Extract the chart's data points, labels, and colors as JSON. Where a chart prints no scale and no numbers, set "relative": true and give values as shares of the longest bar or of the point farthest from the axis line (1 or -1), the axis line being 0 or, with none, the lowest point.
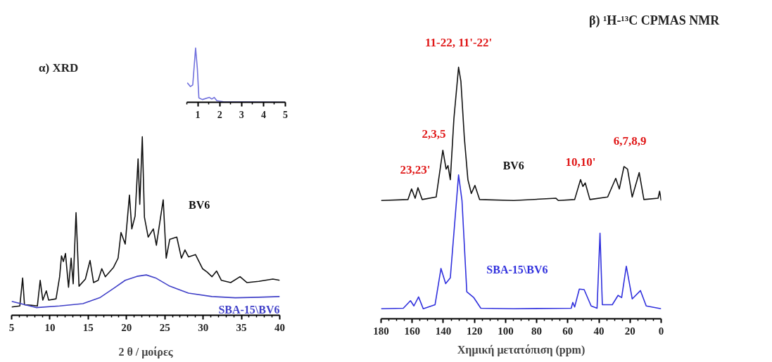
{
  "chart_data": [
    {
      "type": "line",
      "title": "α) XRD",
      "xlabel": "2 θ / μοίρες",
      "relative": true,
      "tick_labels": "x",
      "xlim": [
        5,
        40
      ],
      "xticks": [
        5,
        {
          "value": 6,
          "label": null
        },
        {
          "value": 7,
          "label": null
        },
        {
          "value": 8,
          "label": null
        },
        {
          "value": 9,
          "label": null
        },
        10,
        {
          "value": 11,
          "label": null
        },
        {
          "value": 12,
          "label": null
        },
        {
          "value": 13,
          "label": null
        },
        {
          "value": 14,
          "label": null
        },
        15,
        {
          "value": 16,
          "label": null
        },
        {
          "value": 17,
          "label": null
        },
        {
          "value": 18,
          "label": null
        },
        {
          "value": 19,
          "label": null
        },
        20,
        {
          "value": 21,
          "label": null
        },
        {
          "value": 22,
          "label": null
        },
        {
          "value": 23,
          "label": null
        },
        {
          "value": 24,
          "label": null
        },
        25,
        {
          "value": 26,
          "label": null
        },
        {
          "value": 27,
          "label": null
        },
        {
          "value": 28,
          "label": null
        },
        {
          "value": 29,
          "label": null
        },
        30,
        {
          "value": 31,
          "label": null
        },
        {
          "value": 32,
          "label": null
        },
        {
          "value": 33,
          "label": null
        },
        {
          "value": 34,
          "label": null
        },
        35,
        {
          "value": 36,
          "label": null
        },
        {
          "value": 37,
          "label": null
        },
        {
          "value": 38,
          "label": null
        },
        {
          "value": 39,
          "label": null
        },
        40
      ],
      "series": [
        {
          "name": "BV6",
          "color": "#111111",
          "x": [
            5,
            6.07,
            6.44,
            6.68,
            7.6,
            8.36,
            8.73,
            9.07,
            9.53,
            9.83,
            10.8,
            11.27,
            11.51,
            11.76,
            12.03,
            12.43,
            12.77,
            13.04,
            13.41,
            13.8,
            14.63,
            15.24,
            15.7,
            16.3,
            16.77,
            17.23,
            18.3,
            18.9,
            19.28,
            19.83,
            20.38,
            20.69,
            21.12,
            21.51,
            21.73,
            22.06,
            22.34,
            22.83,
            23.5,
            23.9,
            24.42,
            24.79,
            25.18,
            25.64,
            26.56,
            27.17,
            27.63,
            28.09,
            29.0,
            29.92,
            30.53,
            31.15,
            31.76,
            32.37,
            33.6,
            34.82,
            35.73,
            37.26,
            39.1,
            40
          ],
          "values": [
            0.046,
            0.052,
            0.209,
            0.059,
            0.056,
            0.052,
            0.196,
            0.085,
            0.137,
            0.085,
            0.092,
            0.216,
            0.333,
            0.301,
            0.346,
            0.157,
            0.32,
            0.176,
            0.575,
            0.163,
            0.203,
            0.307,
            0.183,
            0.196,
            0.261,
            0.216,
            0.268,
            0.32,
            0.464,
            0.399,
            0.673,
            0.484,
            0.556,
            0.876,
            0.621,
            1.0,
            0.549,
            0.438,
            0.484,
            0.392,
            0.542,
            0.647,
            0.32,
            0.425,
            0.438,
            0.32,
            0.366,
            0.327,
            0.34,
            0.261,
            0.242,
            0.216,
            0.248,
            0.196,
            0.183,
            0.216,
            0.183,
            0.19,
            0.203,
            0.196
          ]
        },
        {
          "name": "SBA-15\\BV6",
          "color": "#4040c8",
          "x": [
            5,
            6.2,
            8.2,
            11.27,
            14.3,
            16.5,
            18.3,
            19.83,
            21.36,
            22.58,
            23.8,
            25.64,
            28.09,
            31.15,
            34.2,
            37.26,
            40
          ],
          "values": [
            0.078,
            0.065,
            0.043,
            0.052,
            0.065,
            0.098,
            0.15,
            0.196,
            0.218,
            0.226,
            0.209,
            0.163,
            0.124,
            0.105,
            0.098,
            0.101,
            0.105
          ]
        }
      ]
    },
    {
      "type": "line",
      "relative": true,
      "tick_labels": "x",
      "xlim": [
        0.5,
        5
      ],
      "xticks": [
        {
          "value": 0.5,
          "label": null
        },
        1,
        {
          "value": 1.5,
          "label": null
        },
        2,
        {
          "value": 2.5,
          "label": null
        },
        3,
        {
          "value": 3.5,
          "label": null
        },
        4,
        {
          "value": 4.5,
          "label": null
        },
        5
      ],
      "series": [
        {
          "color": "#7070dd",
          "x": [
            0.52,
            0.66,
            0.77,
            0.9,
            0.98,
            1.05,
            1.21,
            1.53,
            1.64,
            1.75,
            1.87,
            2.17,
            3.24,
            5
          ],
          "values": [
            0.36,
            0.29,
            0.32,
            1.0,
            0.62,
            0.08,
            0.05,
            0.09,
            0.06,
            0.09,
            0.03,
            0.01,
            0.005,
            0
          ]
        }
      ]
    },
    {
      "type": "line",
      "title": "β) ¹H-¹³C CPMAS NMR",
      "xlabel": "Χημική μετατόπιση (ppm)",
      "relative": true,
      "tick_labels": "x",
      "xlim": [
        180,
        0
      ],
      "xticks": [
        180,
        {
          "value": 175,
          "label": null
        },
        {
          "value": 170,
          "label": null
        },
        {
          "value": 165,
          "label": null
        },
        160,
        {
          "value": 155,
          "label": null
        },
        {
          "value": 150,
          "label": null
        },
        {
          "value": 145,
          "label": null
        },
        140,
        {
          "value": 135,
          "label": null
        },
        {
          "value": 130,
          "label": null
        },
        {
          "value": 125,
          "label": null
        },
        120,
        {
          "value": 115,
          "label": null
        },
        {
          "value": 110,
          "label": null
        },
        {
          "value": 105,
          "label": null
        },
        100,
        {
          "value": 95,
          "label": null
        },
        {
          "value": 90,
          "label": null
        },
        {
          "value": 85,
          "label": null
        },
        80,
        {
          "value": 75,
          "label": null
        },
        {
          "value": 70,
          "label": null
        },
        {
          "value": 65,
          "label": null
        },
        60,
        {
          "value": 55,
          "label": null
        },
        {
          "value": 50,
          "label": null
        },
        {
          "value": 45,
          "label": null
        },
        40,
        {
          "value": 35,
          "label": null
        },
        {
          "value": 30,
          "label": null
        },
        {
          "value": 25,
          "label": null
        },
        20,
        {
          "value": 15,
          "label": null
        },
        {
          "value": 10,
          "label": null
        },
        {
          "value": 5,
          "label": null
        },
        0
      ],
      "annotations": [
        "11-22, 11'-22'",
        "2,3,5",
        "23,23'",
        "10,10'",
        "6,7,8,9"
      ],
      "series": [
        {
          "name": "BV6",
          "color": "#111111",
          "x": [
            180,
            162.7,
            160.4,
            158.1,
            156.3,
            153.6,
            144.6,
            140.3,
            138.2,
            137,
            135.5,
            133.2,
            130.2,
            128.7,
            126.5,
            124.2,
            122,
            119.7,
            116.7,
            94.8,
            67.6,
            66.1,
            55.6,
            51.8,
            50.3,
            48.8,
            45.8,
            34.4,
            29.2,
            26.9,
            23.9,
            21.6,
            18.6,
            14.1,
            11.1,
            2.0,
            1.0,
            0
          ],
          "values": [
            0.47,
            0.474,
            0.516,
            0.479,
            0.521,
            0.474,
            0.484,
            0.67,
            0.595,
            0.609,
            0.553,
            0.795,
            1.0,
            0.944,
            0.721,
            0.553,
            0.498,
            0.53,
            0.474,
            0.47,
            0.479,
            0.47,
            0.474,
            0.553,
            0.526,
            0.54,
            0.474,
            0.484,
            0.558,
            0.516,
            0.605,
            0.595,
            0.484,
            0.581,
            0.474,
            0.479,
            0.507,
            0.47
          ]
        },
        {
          "name": "SBA-15\\BV6",
          "color": "#3030dd",
          "x": [
            180,
            165.7,
            161.1,
            158.9,
            155.9,
            152.9,
            145.3,
            141.5,
            138.5,
            135.5,
            130.2,
            128,
            124.9,
            120.4,
            115.9,
            94.8,
            57.8,
            56.8,
            55.6,
            52.6,
            49.5,
            45,
            41.2,
            39.3,
            37.8,
            31.4,
            27.7,
            25.4,
            22.4,
            18.6,
            13.3,
            9.6,
            0
          ],
          "values": [
            0.04,
            0.042,
            0.072,
            0.051,
            0.087,
            0.04,
            0.056,
            0.2,
            0.14,
            0.163,
            0.572,
            0.47,
            0.107,
            0.084,
            0.042,
            0.04,
            0.042,
            0.065,
            0.047,
            0.118,
            0.116,
            0.051,
            0.042,
            0.34,
            0.056,
            0.056,
            0.093,
            0.084,
            0.209,
            0.079,
            0.112,
            0.051,
            0.04
          ]
        }
      ]
    }
  ]
}
